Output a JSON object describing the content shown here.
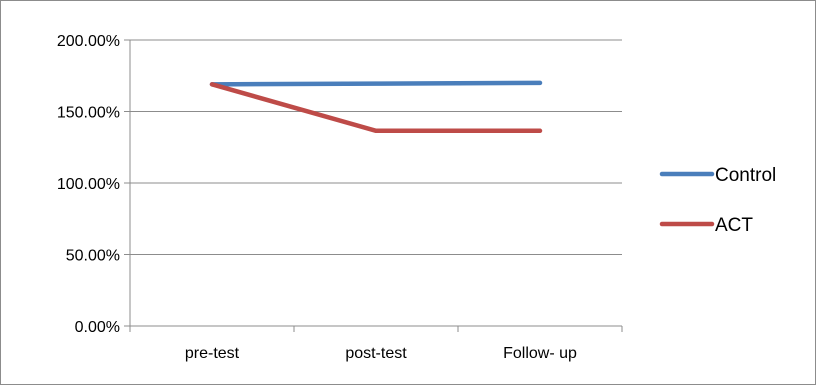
{
  "chart_data": {
    "type": "line",
    "title": "",
    "xlabel": "",
    "ylabel": "",
    "categories": [
      "pre-test",
      "post-test",
      "Follow- up"
    ],
    "ylim": [
      0,
      2.0
    ],
    "y_ticks": [
      0,
      0.5,
      1.0,
      1.5,
      2.0
    ],
    "y_tick_labels": [
      "0.00%",
      "50.00%",
      "100.00%",
      "150.00%",
      "200.00%"
    ],
    "grid": true,
    "legend_position": "right",
    "series": [
      {
        "name": "Control",
        "color": "#4a7ebb",
        "values": [
          1.69,
          1.695,
          1.7
        ]
      },
      {
        "name": "ACT",
        "color": "#be4b48",
        "values": [
          1.69,
          1.365,
          1.365
        ]
      }
    ]
  }
}
